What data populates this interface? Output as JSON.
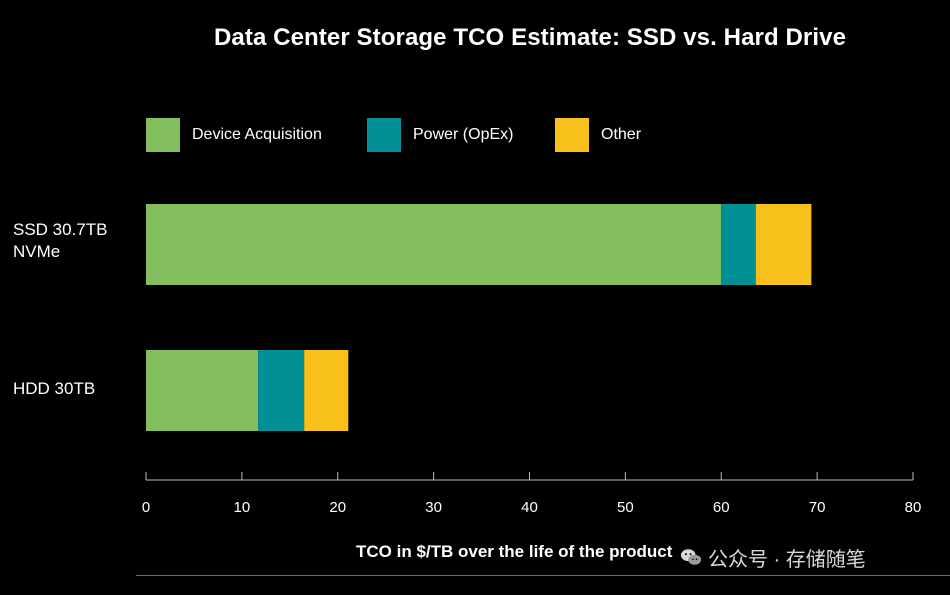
{
  "chart_data": {
    "type": "bar",
    "orientation": "horizontal",
    "stacked": true,
    "title": "Data Center Storage TCO Estimate: SSD vs. Hard Drive",
    "xlabel": "TCO in $/TB over the life of the product",
    "ylabel": "",
    "xlim": [
      0,
      80
    ],
    "xticks": [
      0,
      10,
      20,
      30,
      40,
      50,
      60,
      70,
      80
    ],
    "grid": false,
    "legend_position": "top",
    "categories": [
      "SSD 30.7TB NVMe",
      "HDD 30TB"
    ],
    "category_lines": [
      [
        "SSD 30.7TB",
        "NVMe"
      ],
      [
        "HDD 30TB"
      ]
    ],
    "series": [
      {
        "name": "Device Acquisition",
        "color": "#82bd5e",
        "values": [
          60,
          11.7
        ]
      },
      {
        "name": "Power (OpEx)",
        "color": "#009096",
        "values": [
          3.6,
          4.8
        ]
      },
      {
        "name": "Other",
        "color": "#f8c01b",
        "values": [
          5.8,
          4.6
        ]
      }
    ]
  },
  "watermark": {
    "text": "公众号 · 存储随笔",
    "icon": "wechat-logo-icon"
  }
}
